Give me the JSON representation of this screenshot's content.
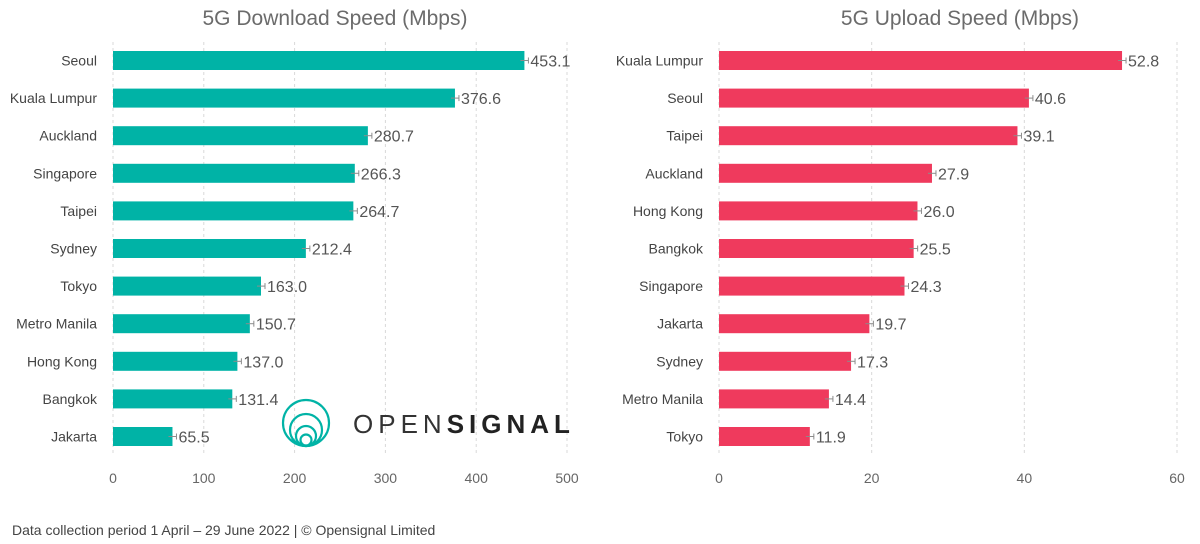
{
  "chart_data": [
    {
      "type": "bar",
      "orientation": "horizontal",
      "title": "5G Download Speed (Mbps)",
      "categories": [
        "Seoul",
        "Kuala Lumpur",
        "Auckland",
        "Singapore",
        "Taipei",
        "Sydney",
        "Tokyo",
        "Metro Manila",
        "Hong Kong",
        "Bangkok",
        "Jakarta"
      ],
      "values": [
        453.1,
        376.6,
        280.7,
        266.3,
        264.7,
        212.4,
        163.0,
        150.7,
        137.0,
        131.4,
        65.5
      ],
      "value_labels": [
        "453.1",
        "376.6",
        "280.7",
        "266.3",
        "264.7",
        "212.4",
        "163.0",
        "150.7",
        "137.0",
        "131.4",
        "65.5"
      ],
      "xlim": [
        0,
        500
      ],
      "ticks": [
        "0",
        "100",
        "200",
        "300",
        "400",
        "500"
      ],
      "tick_values": [
        0,
        100,
        200,
        300,
        400,
        500
      ],
      "grid": true,
      "color": "#00b3a6"
    },
    {
      "type": "bar",
      "orientation": "horizontal",
      "title": "5G Upload Speed (Mbps)",
      "categories": [
        "Kuala Lumpur",
        "Seoul",
        "Taipei",
        "Auckland",
        "Hong Kong",
        "Bangkok",
        "Singapore",
        "Jakarta",
        "Sydney",
        "Metro Manila",
        "Tokyo"
      ],
      "values": [
        52.8,
        40.6,
        39.1,
        27.9,
        26.0,
        25.5,
        24.3,
        19.7,
        17.3,
        14.4,
        11.9
      ],
      "value_labels": [
        "52.8",
        "40.6",
        "39.1",
        "27.9",
        "26.0",
        "25.5",
        "24.3",
        "19.7",
        "17.3",
        "14.4",
        "11.9"
      ],
      "xlim": [
        0,
        60
      ],
      "ticks": [
        "0",
        "20",
        "40",
        "60"
      ],
      "tick_values": [
        0,
        20,
        40,
        60
      ],
      "grid": true,
      "color": "#ef3a5d"
    }
  ],
  "logo": {
    "text_light": "OPEN",
    "text_bold": "SIGNAL",
    "icon": "opensignal-rings-icon"
  },
  "footer": {
    "text": "Data collection period 1 April – 29 June 2022  |  © Opensignal Limited"
  }
}
